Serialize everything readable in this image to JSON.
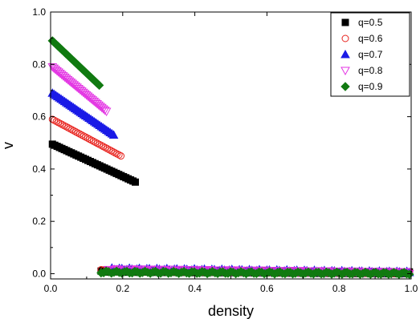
{
  "chart_data": {
    "type": "scatter",
    "title": "",
    "xlabel": "density",
    "ylabel": "v",
    "xlim": [
      0.0,
      1.0
    ],
    "ylim": [
      -0.02,
      1.0
    ],
    "x_ticks": [
      "0.0",
      "0.2",
      "0.4",
      "0.6",
      "0.8",
      "1.0"
    ],
    "y_ticks": [
      "0.0",
      "0.2",
      "0.4",
      "0.6",
      "0.8",
      "1.0"
    ],
    "grid": false,
    "legend_position": "top-right",
    "series": [
      {
        "name": "q=0.5",
        "marker": "square-filled",
        "color": "#000000",
        "free_flow": {
          "x_start": 0.005,
          "x_end": 0.235,
          "y_start": 0.495,
          "y_end": 0.35
        },
        "jammed": {
          "x_start": 0.14,
          "x_end": 0.995,
          "y_start": 0.01,
          "y_end": 0.003
        }
      },
      {
        "name": "q=0.6",
        "marker": "circle-open",
        "color": "#e8231e",
        "free_flow": {
          "x_start": 0.005,
          "x_end": 0.195,
          "y_start": 0.59,
          "y_end": 0.45
        },
        "jammed": {
          "x_start": 0.14,
          "x_end": 0.995,
          "y_start": 0.012,
          "y_end": 0.004
        }
      },
      {
        "name": "q=0.7",
        "marker": "triangle-up-filled",
        "color": "#1a1ae6",
        "free_flow": {
          "x_start": 0.005,
          "x_end": 0.175,
          "y_start": 0.69,
          "y_end": 0.53
        },
        "jammed": {
          "x_start": 0.17,
          "x_end": 0.995,
          "y_start": 0.018,
          "y_end": 0.005
        }
      },
      {
        "name": "q=0.8",
        "marker": "triangle-down-open",
        "color": "#e335e3",
        "free_flow": {
          "x_start": 0.005,
          "x_end": 0.155,
          "y_start": 0.79,
          "y_end": 0.62
        },
        "jammed": {
          "x_start": 0.16,
          "x_end": 0.995,
          "y_start": 0.015,
          "y_end": 0.004
        }
      },
      {
        "name": "q=0.9",
        "marker": "diamond-filled",
        "color": "#117a11",
        "free_flow": {
          "x_start": 0.005,
          "x_end": 0.135,
          "y_start": 0.89,
          "y_end": 0.72
        },
        "jammed": {
          "x_start": 0.14,
          "x_end": 0.995,
          "y_start": 0.006,
          "y_end": 0.001
        }
      }
    ]
  }
}
